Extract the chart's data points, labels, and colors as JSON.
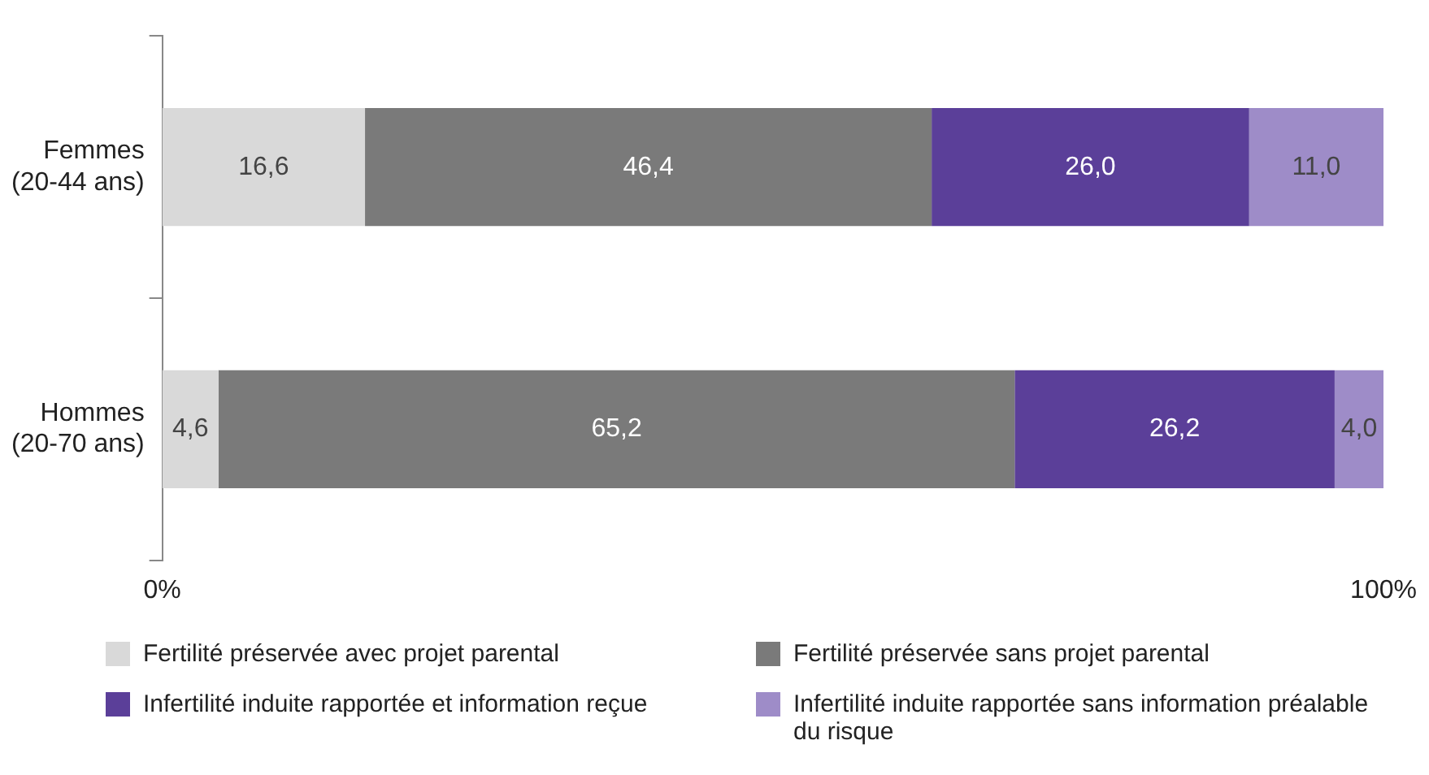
{
  "chart_data": {
    "type": "bar",
    "orientation": "horizontal",
    "stacked": true,
    "categories": [
      "Femmes (20-44 ans)",
      "Hommes (20-70 ans)"
    ],
    "series": [
      {
        "name": "Fertilité préservée avec projet parental",
        "color": "#d9d9d9",
        "values": [
          16.6,
          4.6
        ],
        "value_labels": [
          "16,6",
          "4,6"
        ]
      },
      {
        "name": "Fertilité préservée sans projet parental",
        "color": "#7a7a7a",
        "values": [
          46.4,
          65.2
        ],
        "value_labels": [
          "46,4",
          "65,2"
        ]
      },
      {
        "name": "Infertilité induite rapportée et information reçue",
        "color": "#5b3f99",
        "values": [
          26.0,
          26.2
        ],
        "value_labels": [
          "26,0",
          "26,2"
        ]
      },
      {
        "name": "Infertilité induite rapportée sans information préalable du risque",
        "color": "#9e8cc8",
        "values": [
          11.0,
          4.0
        ],
        "value_labels": [
          "11,0",
          "4,0"
        ]
      }
    ],
    "xlim": [
      0,
      100
    ],
    "xticks": [
      {
        "value": 0,
        "label": "0%"
      },
      {
        "value": 100,
        "label": "100%"
      }
    ],
    "grid": false,
    "legend": "bottom"
  }
}
